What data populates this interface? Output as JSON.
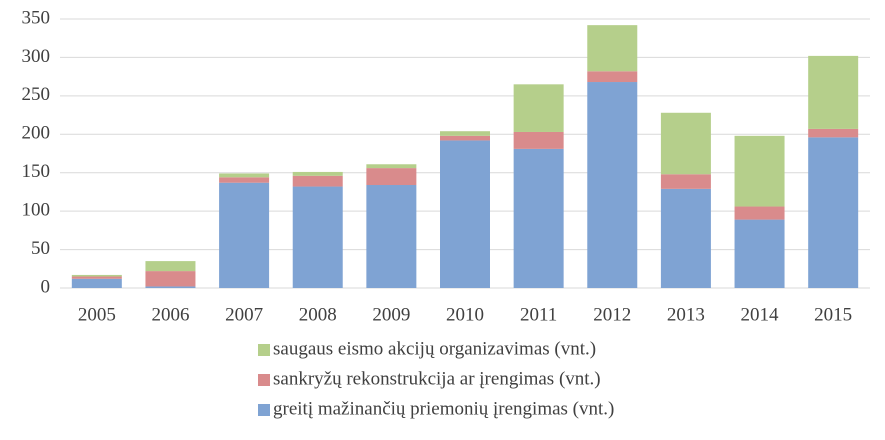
{
  "chart_data": {
    "type": "stacked_bar",
    "categories": [
      "2005",
      "2006",
      "2007",
      "2008",
      "2009",
      "2010",
      "2011",
      "2012",
      "2013",
      "2014",
      "2015"
    ],
    "series": [
      {
        "name": "greitį mažinančių priemonių įrengimas (vnt.)",
        "color": "#7fa3d3",
        "values": [
          12,
          2,
          137,
          132,
          134,
          192,
          181,
          268,
          129,
          89,
          196
        ]
      },
      {
        "name": "sankryžų rekonstrukcija ar įrengimas (vnt.)",
        "color": "#d98b8c",
        "values": [
          3,
          20,
          7,
          14,
          22,
          6,
          22,
          14,
          19,
          17,
          11
        ]
      },
      {
        "name": "saugaus eismo akcijų organizavimas (vnt.)",
        "color": "#b5cf8b",
        "values": [
          2,
          13,
          5,
          5,
          5,
          6,
          62,
          60,
          80,
          92,
          95
        ]
      }
    ],
    "ylim": [
      0,
      350
    ],
    "yticks": [
      0,
      50,
      100,
      150,
      200,
      250,
      300,
      350
    ],
    "grid": true
  }
}
